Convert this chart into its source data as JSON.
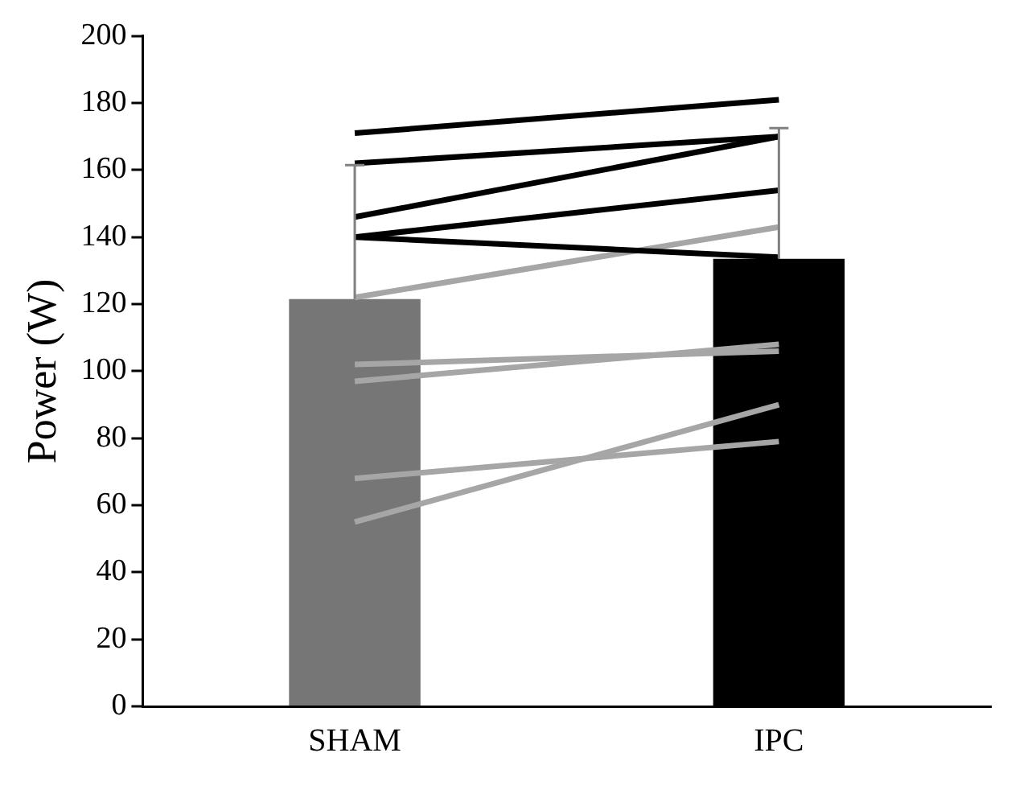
{
  "chart_data": {
    "type": "bar",
    "ylabel": "Power (W)",
    "categories": [
      "SHAM",
      "IPC"
    ],
    "ylim": [
      0,
      200
    ],
    "yticks": [
      0,
      20,
      40,
      60,
      80,
      100,
      120,
      140,
      160,
      180,
      200
    ],
    "grid": false,
    "legend": false,
    "marker": "none",
    "series": [
      {
        "colors": [
          "#767676",
          "#000000"
        ],
        "values": [
          121.5,
          133.5
        ],
        "errors": [
          [
            121.5,
            161.5
          ],
          [
            133.5,
            172.5
          ]
        ]
      },
      {
        "type": "line",
        "color": "#000000",
        "values": [
          171,
          181
        ]
      },
      {
        "type": "line",
        "color": "#000000",
        "values": [
          162,
          170
        ]
      },
      {
        "type": "line",
        "color": "#000000",
        "values": [
          146,
          170
        ]
      },
      {
        "type": "line",
        "color": "#000000",
        "values": [
          140,
          154
        ]
      },
      {
        "type": "line",
        "color": "#000000",
        "values": [
          140,
          134
        ]
      },
      {
        "type": "line",
        "color": "#a6a6a6",
        "values": [
          122,
          143
        ]
      },
      {
        "type": "line",
        "color": "#a6a6a6",
        "values": [
          102,
          106
        ]
      },
      {
        "type": "line",
        "color": "#a6a6a6",
        "values": [
          97,
          108
        ]
      },
      {
        "type": "line",
        "color": "#a6a6a6",
        "values": [
          68,
          79
        ]
      },
      {
        "type": "line",
        "color": "#a6a6a6",
        "values": [
          55,
          90
        ]
      }
    ]
  }
}
